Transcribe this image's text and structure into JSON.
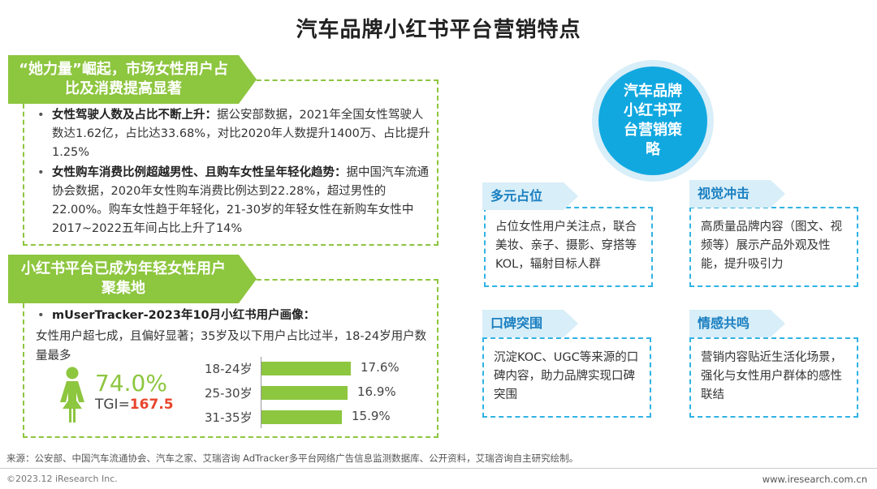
{
  "title": "汽车品牌小红书平台营销特点",
  "panel1": {
    "heading": "“她力量”崛起，市场女性用户占比及消费提高显著",
    "bullets": [
      {
        "bold": "女性驾驶人数及占比不断上升：",
        "text": "据公安部数据，2021年全国女性驾驶人数达1.62亿，占比达33.68%，对比2020年人数提升1400万、占比提升1.25%"
      },
      {
        "bold": "女性购车消费比例超越男性、且购车女性呈年轻化趋势：",
        "text": "据中国汽车流通协会数据，2020年女性购车消费比例达到22.28%，超过男性的22.00%。购车女性趋于年轻化，21-30岁的年轻女性在新购车女性中2017~2022五年间占比上升了14%"
      }
    ]
  },
  "panel2": {
    "heading": "小红书平台已成为年轻女性用户聚集地",
    "bullet_bold": "mUserTracker-2023年10月小红书用户画像：",
    "bullet_text": "女性用户超七成，且偏好显著；35岁及以下用户占比过半，18-24岁用户数量最多",
    "female_pct": "74.0%",
    "tgi_label": "TGI=",
    "tgi_value": "167.5"
  },
  "chart_data": {
    "type": "bar",
    "orientation": "horizontal",
    "categories": [
      "18-24岁",
      "25-30岁",
      "31-35岁"
    ],
    "values": [
      17.6,
      16.9,
      15.9
    ],
    "value_labels": [
      "17.6%",
      "16.9%",
      "15.9%"
    ],
    "color": "#8dc63f",
    "xlim": [
      0,
      17.6
    ]
  },
  "strategy": {
    "circle_label": "汽车品牌小红书平台营销策略",
    "items": [
      {
        "tag": "多元占位",
        "text": "占位女性用户关注点，联合美妆、亲子、摄影、穿搭等KOL，辐射目标人群"
      },
      {
        "tag": "视觉冲击",
        "text": "高质量品牌内容（图文、视频等）展示产品外观及性能，提升吸引力"
      },
      {
        "tag": "口碑突围",
        "text": "沉淀KOC、UGC等来源的口碑内容，助力品牌实现口碑突围"
      },
      {
        "tag": "情感共鸣",
        "text": "营销内容贴近生活化场景，强化与女性用户群体的感性联结"
      }
    ]
  },
  "footer": {
    "source": "来源：公安部、中国汽车流通协会、汽车之家、艾瑞咨询 AdTracker多平台网络广告信息监测数据库、公开资料，艾瑞咨询自主研究绘制。",
    "copyright": "©2023.12 iResearch Inc.",
    "url": "www.iresearch.com.cn"
  },
  "colors": {
    "green": "#8dc63f",
    "blue": "#11a8e0",
    "light_blue": "#d8eef8",
    "red": "#e8452c"
  }
}
